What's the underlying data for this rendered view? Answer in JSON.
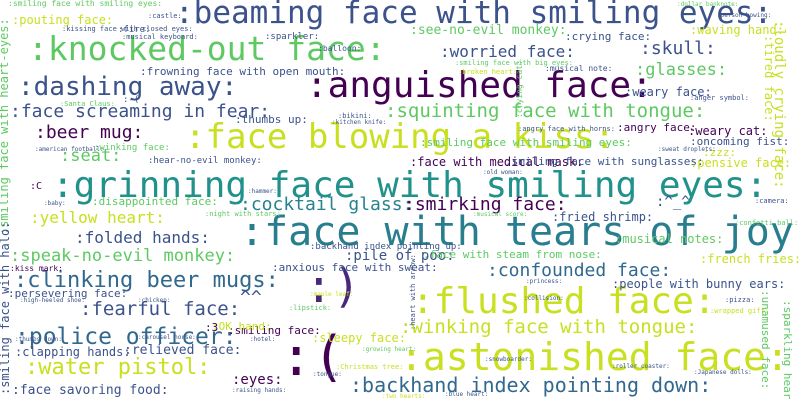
{
  "words": [
    {
      "text": ":beaming face with smiling eyes:",
      "color": "#3b528b"
    },
    {
      "text": ":knocked-out face:",
      "color": "#5ec962"
    },
    {
      "text": ":anguished face:",
      "color": "#440154"
    },
    {
      "text": ":face blowing a kiss:",
      "color": "#c8e020"
    },
    {
      "text": ":grinning face with smiling eyes:",
      "color": "#21918c"
    },
    {
      "text": ":face with tears of joy:",
      "color": "#287d8e"
    },
    {
      "text": ":flushed face:",
      "color": "#c8e020"
    },
    {
      "text": ":astonished face:",
      "color": "#c8e020"
    },
    {
      "text": ":dashing away:",
      "color": "#3b528b"
    },
    {
      "text": ":)",
      "color": "#482878"
    },
    {
      "text": ":(",
      "color": "#440154"
    },
    {
      "text": ":face screaming in fear:",
      "color": "#3b528b"
    },
    {
      "text": ":squinting face with tongue:",
      "color": "#5ec962"
    },
    {
      "text": ":backhand index pointing down:",
      "color": "#31688e"
    },
    {
      "text": ":police officer:",
      "color": "#31688e"
    },
    {
      "text": ":winking face with tongue:",
      "color": "#c8e020"
    },
    {
      "text": ":clinking beer mugs:",
      "color": "#31688e"
    },
    {
      "text": ":water pistol:",
      "color": "#c8e020"
    },
    {
      "text": ":beer mug:",
      "color": "#440154"
    },
    {
      "text": ":cocktail glass:",
      "color": "#26828e"
    },
    {
      "text": ":smirking face:",
      "color": "#440154"
    },
    {
      "text": ":yellow heart:",
      "color": "#c8e020"
    },
    {
      "text": ":speak-no-evil monkey:",
      "color": "#5ec962"
    },
    {
      "text": ":confounded face:",
      "color": "#31688e"
    },
    {
      "text": ":fearful face:",
      "color": "#3b528b"
    },
    {
      "text": ":skull:",
      "color": "#3b528b"
    },
    {
      "text": ":worried face:",
      "color": "#3b528b"
    },
    {
      "text": ":glasses:",
      "color": "#5ec962"
    },
    {
      "text": ":see-no-evil monkey:",
      "color": "#5ec962"
    },
    {
      "text": ":folded hands:",
      "color": "#3b528b"
    },
    {
      "text": ":seat:",
      "color": "#5ec962"
    },
    {
      "text": ":pile of poo:",
      "color": "#3b528b"
    },
    {
      "text": ":pouting face:",
      "color": "#c8e020"
    },
    {
      "text": ":frowning face with open mouth:",
      "color": "#3b528b"
    },
    {
      "text": ":face with medical mask:",
      "color": "#440154"
    },
    {
      "text": ":waving hand:",
      "color": "#c8e020"
    },
    {
      "text": ":weary face:",
      "color": "#3b528b"
    },
    {
      "text": ":weary cat:",
      "color": "#440154"
    },
    {
      "text": ":pensive face:",
      "color": "#c8e020"
    },
    {
      "text": ":smiling face with sunglasses:",
      "color": "#3b528b"
    },
    {
      "text": ":zzz:",
      "color": "#c8e020"
    },
    {
      "text": ":fried shrimp:",
      "color": "#3b528b"
    },
    {
      "text": ":musical notes:",
      "color": "#5ec962"
    },
    {
      "text": ":french fries:",
      "color": "#c8e020"
    },
    {
      "text": ":people with bunny ears:",
      "color": "#3b528b"
    },
    {
      "text": ":sleepy face:",
      "color": "#c8e020"
    },
    {
      "text": ":eyes:",
      "color": "#440154"
    },
    {
      "text": ":face savoring food:",
      "color": "#3b528b"
    },
    {
      "text": ":relieved face:",
      "color": "#3b528b"
    },
    {
      "text": ":clapping hands:",
      "color": "#3b528b"
    },
    {
      "text": ":persevering face:",
      "color": "#3b528b"
    },
    {
      "text": ":smiling face:",
      "color": "#440154"
    },
    {
      "text": ":crying face:",
      "color": "#3b528b"
    },
    {
      "text": ":oncoming fist:",
      "color": "#3b528b"
    },
    {
      "text": ":smiling face with smiling eyes:",
      "color": "#5ec962"
    },
    {
      "text": ":angry face:",
      "color": "#440154"
    },
    {
      "text": ":thumbs up:",
      "color": "#3b528b"
    },
    {
      "text": ":disappointed face:",
      "color": "#5ec962"
    },
    {
      "text": ":face with steam from nose:",
      "color": "#5ec962"
    },
    {
      "text": ":anxious face with sweat:",
      "color": "#3b528b"
    },
    {
      "text": ":OK hand:",
      "color": "#c8e020"
    },
    {
      "text": ":kiss mark:",
      "color": "#440154"
    },
    {
      "text": ":hear-no-evil monkey:",
      "color": "#3b528b"
    },
    {
      "text": ":winking face:",
      "color": "#5ec962"
    },
    {
      "text": ":sparkler:",
      "color": "#3b528b"
    },
    {
      "text": ":fire:",
      "color": "#3b528b"
    },
    {
      "text": ":kissing face with closed eyes:",
      "color": "#3b528b"
    },
    {
      "text": ":castle:",
      "color": "#3b528b"
    },
    {
      "text": ":musical keyboard:",
      "color": "#3b528b"
    },
    {
      "text": ":balloon:",
      "color": "#3b528b"
    },
    {
      "text": ":musical note:",
      "color": "#3b528b"
    },
    {
      "text": ":smiling face with big eyes:",
      "color": "#5ec962"
    },
    {
      "text": ":broken heart:",
      "color": "#c8e020"
    },
    {
      "text": ":anger symbol:",
      "color": "#3b528b"
    },
    {
      "text": ":Santa Claus:",
      "color": "#5ec962"
    },
    {
      "text": ":bikini:",
      "color": "#3b528b"
    },
    {
      "text": ":kitchen knife:",
      "color": "#3b528b"
    },
    {
      "text": ":angry face with horns:",
      "color": "#3b528b"
    },
    {
      "text": ":american football:",
      "color": "#3b528b"
    },
    {
      "text": ":hammer:",
      "color": "#3b528b"
    },
    {
      "text": ":old woman:",
      "color": "#3b528b"
    },
    {
      "text": ":baby:",
      "color": "#3b528b"
    },
    {
      "text": ":night with stars:",
      "color": "#5ec962"
    },
    {
      "text": ":backhand index pointing up:",
      "color": "#3b528b"
    },
    {
      "text": ":musical score:",
      "color": "#5ec962"
    },
    {
      "text": ":camera:",
      "color": "#3b528b"
    },
    {
      "text": ":confetti ball:",
      "color": "#5ec962"
    },
    {
      "text": ":high-heeled shoe:",
      "color": "#3b528b"
    },
    {
      "text": ":chicken:",
      "color": "#3b528b"
    },
    {
      "text": ":lipstick:",
      "color": "#5ec962"
    },
    {
      "text": ":maple leaf:",
      "color": "#c8e020"
    },
    {
      "text": ":collision:",
      "color": "#3b528b"
    },
    {
      "text": ":princess:",
      "color": "#3b528b"
    },
    {
      "text": ":pizza:",
      "color": "#3b528b"
    },
    {
      "text": ":wrapped gift:",
      "color": "#c8e020"
    },
    {
      "text": ":thumbs down:",
      "color": "#3b528b"
    },
    {
      "text": ":carousel horse:",
      "color": "#3b528b"
    },
    {
      "text": ":growing heart:",
      "color": "#5ec962"
    },
    {
      "text": ":snowboarder:",
      "color": "#3b528b"
    },
    {
      "text": ":roller coaster:",
      "color": "#3b528b"
    },
    {
      "text": ":Japanese dolls:",
      "color": "#3b528b"
    },
    {
      "text": ":Christmas tree:",
      "color": "#c8e020"
    },
    {
      "text": ":raising hands:",
      "color": "#3b528b"
    },
    {
      "text": ":tongue:",
      "color": "#3b528b"
    },
    {
      "text": ":blue heart:",
      "color": "#3b528b"
    },
    {
      "text": ":two hearts:",
      "color": "#c8e020"
    },
    {
      "text": ":dollar banknote:",
      "color": "#5ec962"
    },
    {
      "text": ":person bowing:",
      "color": "#3b528b"
    },
    {
      "text": ":sweat droplets:",
      "color": "#3b528b"
    },
    {
      "text": ":hotel:",
      "color": "#3b528b"
    },
    {
      "text": ":smiling face with smiling eyes:",
      "color": "#5ec962"
    },
    {
      "text": ":smiling face with heart-eyes:",
      "color": "#5ec962"
    },
    {
      "text": ":smiling face with halo:",
      "color": "#3b528b"
    },
    {
      "text": ":loudly crying face:",
      "color": "#c8e020"
    },
    {
      "text": ":tired face:",
      "color": "#c8e020"
    },
    {
      "text": ":unamused face:",
      "color": "#5ec962"
    },
    {
      "text": ":sparkling heart:",
      "color": "#5ec962"
    },
    {
      "text": ":heart with arrow:",
      "color": "#3b528b"
    },
    {
      "text": ":crying cat:",
      "color": "#5ec962"
    },
    {
      "text": ":^_^",
      "color": "#3b528b"
    },
    {
      "text": "^^",
      "color": "#3b528b"
    },
    {
      "text": ":C",
      "color": "#440154"
    },
    {
      "text": ":-(",
      "color": "#3b528b"
    },
    {
      "text": ":3",
      "color": "#440154"
    }
  ]
}
